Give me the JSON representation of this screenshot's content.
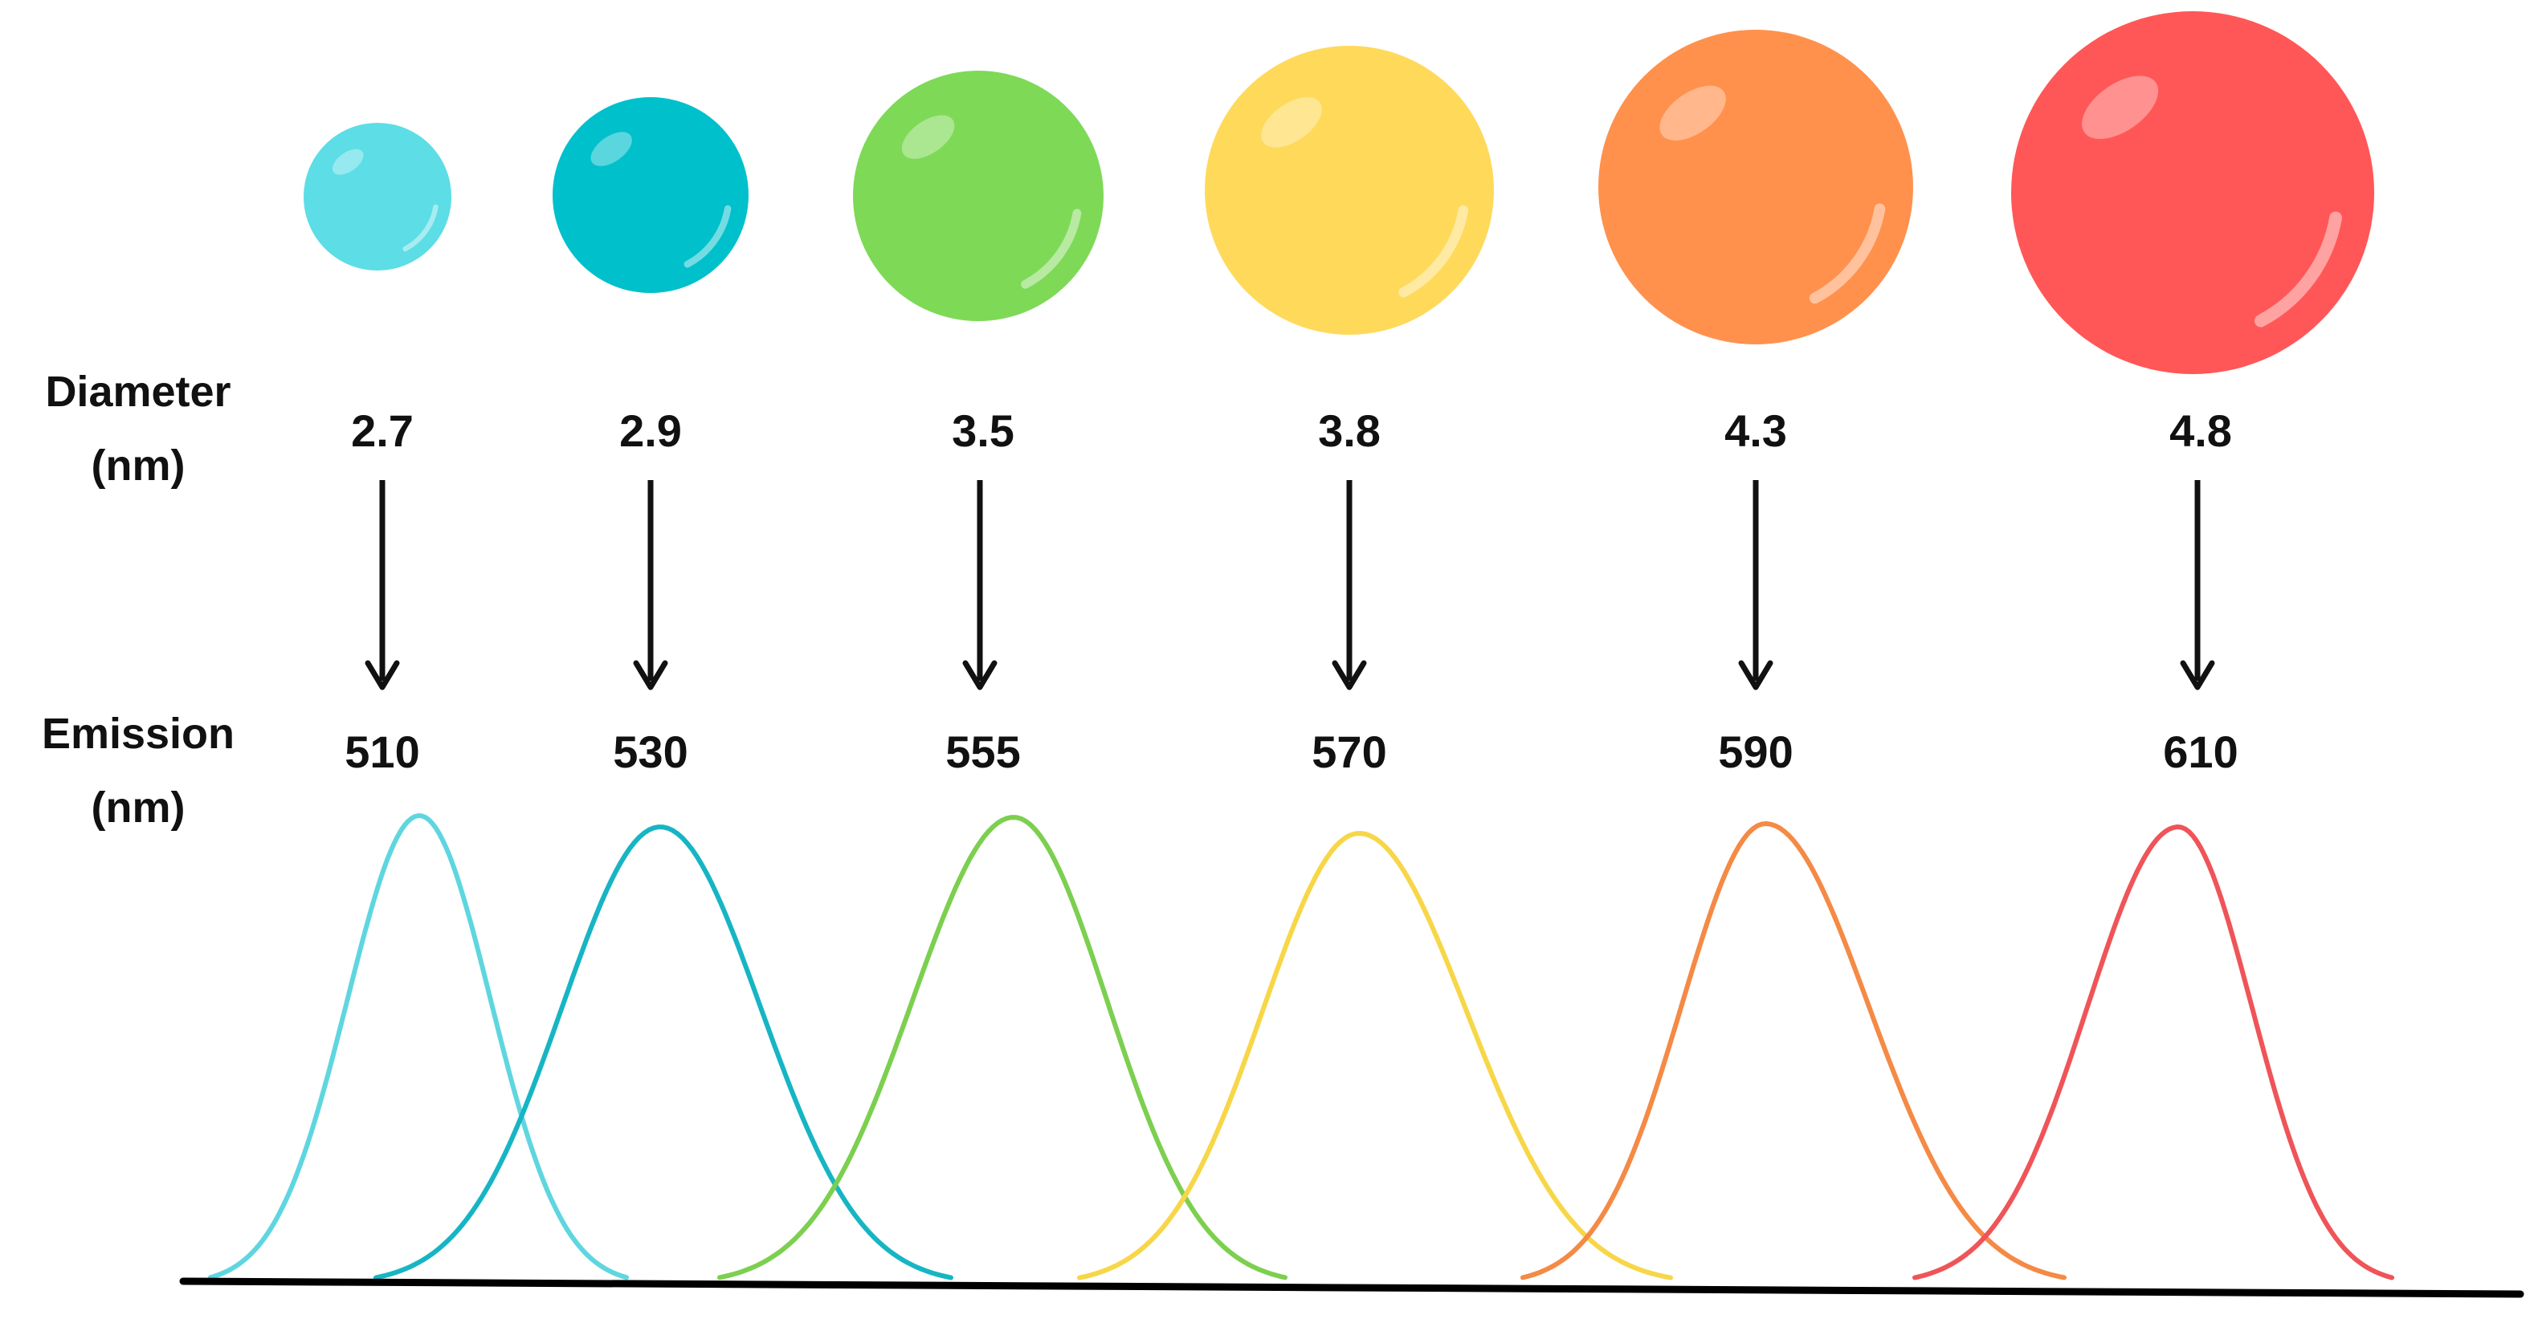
{
  "row_labels": {
    "diameter_line1": "Diameter",
    "diameter_line2": "(nm)",
    "emission_line1": "Emission",
    "emission_line2": "(nm)"
  },
  "quantum_dots": [
    {
      "diameter": "2.7",
      "emission": "510",
      "color": "#5ddde6",
      "curve_color": "#5fd6df"
    },
    {
      "diameter": "2.9",
      "emission": "530",
      "color": "#00c0cc",
      "curve_color": "#17b5c4"
    },
    {
      "diameter": "3.5",
      "emission": "555",
      "color": "#7ed957",
      "curve_color": "#7ccf4f"
    },
    {
      "diameter": "3.8",
      "emission": "570",
      "color": "#ffd95a",
      "curve_color": "#f7d648"
    },
    {
      "diameter": "4.3",
      "emission": "590",
      "color": "#ff914d",
      "curve_color": "#f48a45"
    },
    {
      "diameter": "4.8",
      "emission": "610",
      "color": "#ff5757",
      "curve_color": "#ef5458"
    }
  ],
  "colors": {
    "text": "#111111",
    "arrow": "#111111",
    "baseline": "#000000"
  }
}
